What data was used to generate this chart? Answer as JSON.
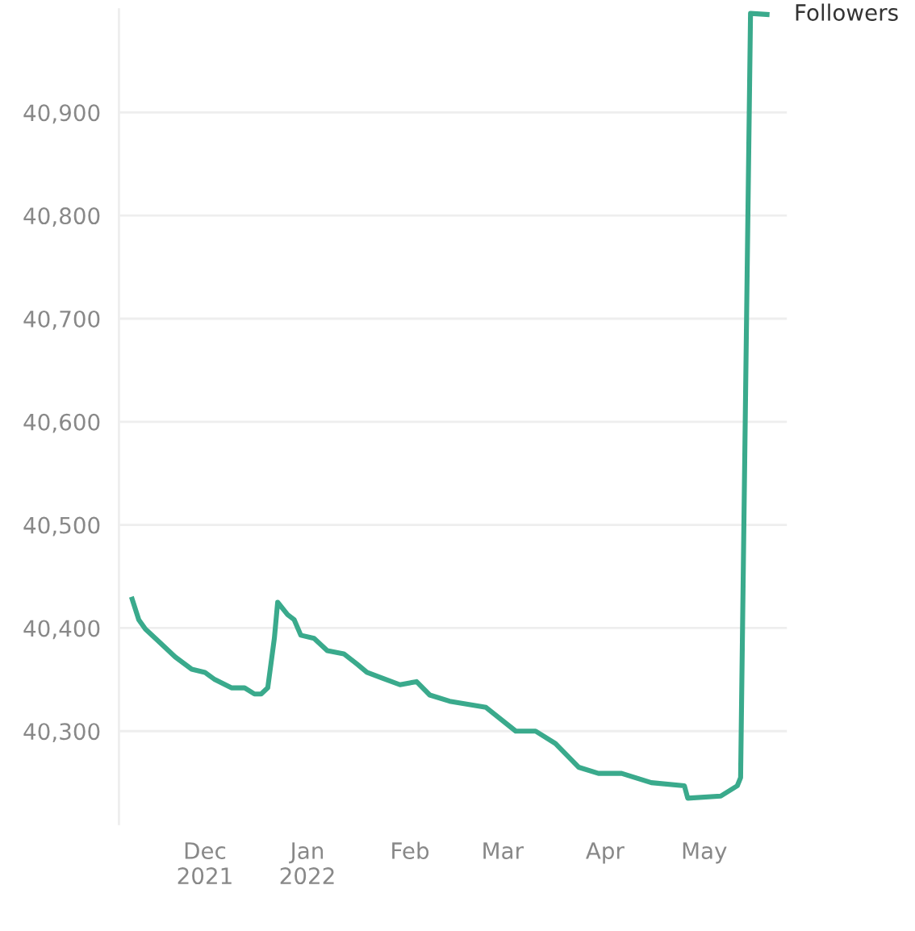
{
  "chart_data": {
    "type": "line",
    "x": [
      "2021-11-09",
      "2021-11-11",
      "2021-11-13",
      "2021-11-17",
      "2021-11-22",
      "2021-11-27",
      "2021-12-01",
      "2021-12-04",
      "2021-12-09",
      "2021-12-13",
      "2021-12-16",
      "2021-12-18",
      "2021-12-20",
      "2021-12-22",
      "2021-12-23",
      "2021-12-26",
      "2021-12-28",
      "2021-12-30",
      "2022-01-03",
      "2022-01-07",
      "2022-01-12",
      "2022-01-16",
      "2022-01-19",
      "2022-01-24",
      "2022-01-29",
      "2022-02-03",
      "2022-02-07",
      "2022-02-13",
      "2022-02-24",
      "2022-03-05",
      "2022-03-11",
      "2022-03-17",
      "2022-03-24",
      "2022-03-30",
      "2022-04-06",
      "2022-04-15",
      "2022-04-25",
      "2022-04-26",
      "2022-05-06",
      "2022-05-11",
      "2022-05-12",
      "2022-05-15",
      "2022-05-20"
    ],
    "series": [
      {
        "name": "Followers",
        "color": "#3aaa8c",
        "values": [
          40428,
          40408,
          40399,
          40387,
          40372,
          40360,
          40357,
          40350,
          40342,
          40342,
          40336,
          40336,
          40342,
          40390,
          40425,
          40413,
          40408,
          40393,
          40390,
          40378,
          40375,
          40365,
          40357,
          40351,
          40345,
          40348,
          40335,
          40329,
          40323,
          40300,
          40300,
          40288,
          40265,
          40259,
          40259,
          40250,
          40247,
          40235,
          40237,
          40247,
          40255,
          40996,
          40995
        ]
      }
    ],
    "xlim": [
      "2021-11-05",
      "2022-05-26"
    ],
    "xticks": [
      {
        "value": "2021-12-01",
        "label": "Dec\n2021"
      },
      {
        "value": "2022-01-01",
        "label": "Jan\n2022"
      },
      {
        "value": "2022-02-01",
        "label": "Feb"
      },
      {
        "value": "2022-03-01",
        "label": "Mar"
      },
      {
        "value": "2022-04-01",
        "label": "Apr"
      },
      {
        "value": "2022-05-01",
        "label": "May"
      }
    ],
    "ylim": [
      40210,
      41000
    ],
    "yticks": [
      {
        "value": 40300,
        "label": "40,300"
      },
      {
        "value": 40400,
        "label": "40,400"
      },
      {
        "value": 40500,
        "label": "40,500"
      },
      {
        "value": 40600,
        "label": "40,600"
      },
      {
        "value": 40700,
        "label": "40,700"
      },
      {
        "value": 40800,
        "label": "40,800"
      },
      {
        "value": 40900,
        "label": "40,900"
      }
    ],
    "grid": "y",
    "line_style": "solid"
  }
}
